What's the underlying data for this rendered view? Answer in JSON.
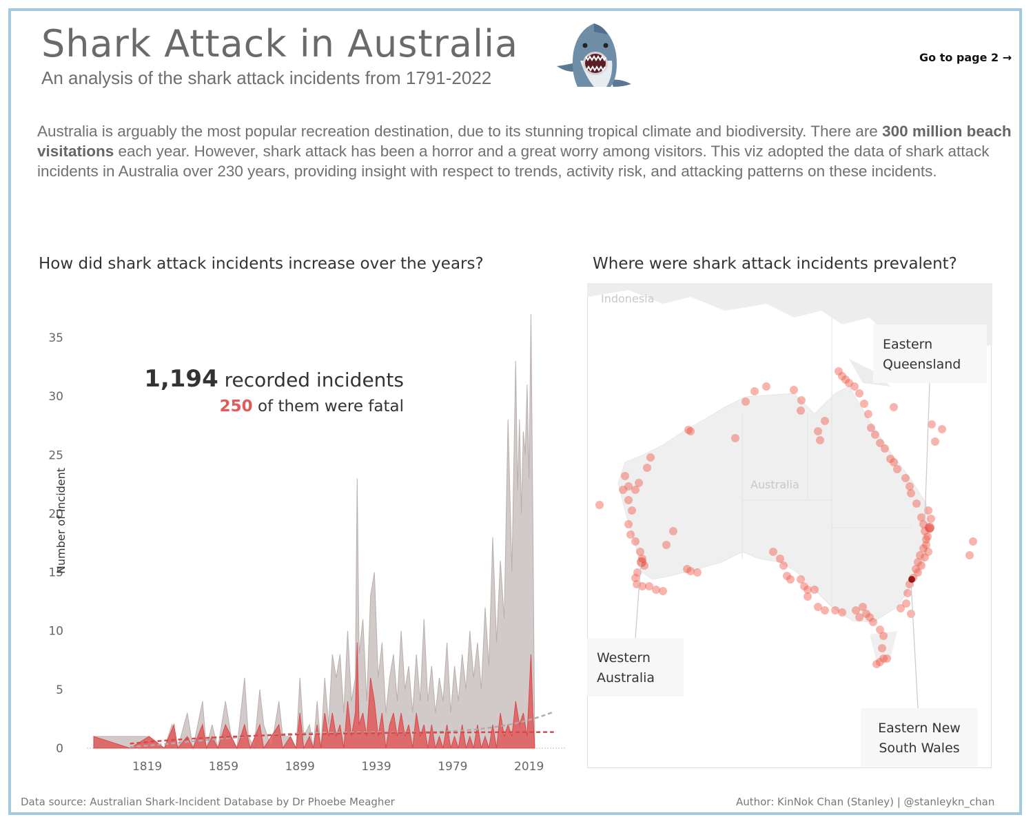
{
  "header": {
    "title": "Shark Attack in Australia",
    "subtitle": "An analysis of the shark attack incidents from 1791-2022",
    "nav_link": "Go to page 2 →"
  },
  "intro": {
    "part1": "Australia is arguably the most popular recreation destination, due to its stunning tropical climate and biodiversity. There are ",
    "bold": "300 million beach visitations",
    "part2": " each year. However, shark attack has been a horror and a great worry among visitors. This viz adopted the data of shark attack incidents in Australia over 230 years, providing insight with respect to trends, activity risk, and attacking patterns on these incidents."
  },
  "chart_section": {
    "question": "How did shark attack incidents increase over the years?",
    "total_number": "1,194",
    "total_text": " recorded incidents",
    "fatal_number": "250",
    "fatal_text": " of them were fatal",
    "total_color": "#c9c1bf",
    "fatal_color": "#e05a5a"
  },
  "map_section": {
    "question": "Where were shark attack incidents prevalent?",
    "base_labels": [
      "Indonesia",
      "Australia"
    ],
    "callouts": [
      {
        "line1": "Eastern",
        "line2": "Queensland"
      },
      {
        "line1": "Western",
        "line2": "Australia"
      },
      {
        "line1": "Eastern New",
        "line2": "South Wales"
      }
    ],
    "point_color": "#f25c4a",
    "hotspot_color": "#8b0000"
  },
  "footer": {
    "source": "Data source: Australian Shark-Incident Database by Dr Phoebe Meagher",
    "author": "Author: KinNok Chan (Stanley) | @stanleykn_chan"
  },
  "chart_data": {
    "type": "area",
    "title": "How did shark attack incidents increase over the years?",
    "xlabel": "",
    "ylabel": "Number of incident",
    "xlim": [
      1791,
      2022
    ],
    "ylim": [
      0,
      37
    ],
    "x_ticks": [
      1819,
      1859,
      1899,
      1939,
      1979,
      2019
    ],
    "y_ticks": [
      0,
      5,
      10,
      15,
      20,
      25,
      30,
      35
    ],
    "grid": false,
    "series": [
      {
        "name": "recorded incidents",
        "trendline": true,
        "points": [
          [
            1791,
            1
          ],
          [
            1810,
            1
          ],
          [
            1820,
            1
          ],
          [
            1828,
            0
          ],
          [
            1832,
            2
          ],
          [
            1835,
            0
          ],
          [
            1840,
            3
          ],
          [
            1843,
            0
          ],
          [
            1848,
            4
          ],
          [
            1850,
            0
          ],
          [
            1853,
            2
          ],
          [
            1856,
            0
          ],
          [
            1860,
            4
          ],
          [
            1863,
            1
          ],
          [
            1866,
            0
          ],
          [
            1870,
            6
          ],
          [
            1872,
            1
          ],
          [
            1875,
            0
          ],
          [
            1878,
            5
          ],
          [
            1880,
            2
          ],
          [
            1884,
            0
          ],
          [
            1888,
            4
          ],
          [
            1890,
            1
          ],
          [
            1893,
            1
          ],
          [
            1897,
            0
          ],
          [
            1899,
            6
          ],
          [
            1901,
            1
          ],
          [
            1904,
            2
          ],
          [
            1906,
            0
          ],
          [
            1908,
            4
          ],
          [
            1910,
            0
          ],
          [
            1912,
            6
          ],
          [
            1914,
            2
          ],
          [
            1916,
            8
          ],
          [
            1918,
            6
          ],
          [
            1920,
            8
          ],
          [
            1922,
            3
          ],
          [
            1924,
            10
          ],
          [
            1926,
            4
          ],
          [
            1928,
            6
          ],
          [
            1929,
            23
          ],
          [
            1930,
            8
          ],
          [
            1932,
            11
          ],
          [
            1934,
            4
          ],
          [
            1936,
            13
          ],
          [
            1938,
            15
          ],
          [
            1940,
            6
          ],
          [
            1942,
            9
          ],
          [
            1944,
            3
          ],
          [
            1946,
            6
          ],
          [
            1948,
            8
          ],
          [
            1950,
            4
          ],
          [
            1952,
            10
          ],
          [
            1954,
            5
          ],
          [
            1956,
            7
          ],
          [
            1958,
            3
          ],
          [
            1960,
            8
          ],
          [
            1962,
            4
          ],
          [
            1964,
            11
          ],
          [
            1966,
            4
          ],
          [
            1968,
            7
          ],
          [
            1970,
            3
          ],
          [
            1972,
            6
          ],
          [
            1974,
            4
          ],
          [
            1976,
            9
          ],
          [
            1978,
            3
          ],
          [
            1980,
            7
          ],
          [
            1982,
            4
          ],
          [
            1984,
            8
          ],
          [
            1986,
            5
          ],
          [
            1988,
            10
          ],
          [
            1990,
            6
          ],
          [
            1992,
            9
          ],
          [
            1994,
            5
          ],
          [
            1996,
            12
          ],
          [
            1998,
            7
          ],
          [
            2000,
            18
          ],
          [
            2002,
            9
          ],
          [
            2004,
            16
          ],
          [
            2006,
            11
          ],
          [
            2008,
            28
          ],
          [
            2010,
            15
          ],
          [
            2012,
            33
          ],
          [
            2013,
            22
          ],
          [
            2014,
            28
          ],
          [
            2015,
            20
          ],
          [
            2016,
            27
          ],
          [
            2017,
            25
          ],
          [
            2018,
            31
          ],
          [
            2019,
            23
          ],
          [
            2020,
            37
          ],
          [
            2021,
            20
          ],
          [
            2022,
            0
          ]
        ]
      },
      {
        "name": "fatal",
        "trendline": true,
        "points": [
          [
            1791,
            1
          ],
          [
            1810,
            0
          ],
          [
            1820,
            1
          ],
          [
            1828,
            0
          ],
          [
            1833,
            2
          ],
          [
            1835,
            0
          ],
          [
            1840,
            1
          ],
          [
            1843,
            0
          ],
          [
            1848,
            2
          ],
          [
            1850,
            0
          ],
          [
            1853,
            1
          ],
          [
            1856,
            0
          ],
          [
            1860,
            2
          ],
          [
            1863,
            1
          ],
          [
            1866,
            0
          ],
          [
            1870,
            2
          ],
          [
            1873,
            0
          ],
          [
            1878,
            2
          ],
          [
            1880,
            0
          ],
          [
            1884,
            1
          ],
          [
            1888,
            2
          ],
          [
            1890,
            0
          ],
          [
            1894,
            1
          ],
          [
            1897,
            0
          ],
          [
            1899,
            3
          ],
          [
            1901,
            0
          ],
          [
            1904,
            1
          ],
          [
            1906,
            0
          ],
          [
            1908,
            2
          ],
          [
            1910,
            0
          ],
          [
            1912,
            3
          ],
          [
            1914,
            1
          ],
          [
            1916,
            3
          ],
          [
            1918,
            1
          ],
          [
            1920,
            2
          ],
          [
            1922,
            0
          ],
          [
            1924,
            4
          ],
          [
            1926,
            1
          ],
          [
            1928,
            3
          ],
          [
            1929,
            9
          ],
          [
            1930,
            2
          ],
          [
            1932,
            3
          ],
          [
            1934,
            1
          ],
          [
            1936,
            6
          ],
          [
            1938,
            4
          ],
          [
            1940,
            1
          ],
          [
            1942,
            3
          ],
          [
            1944,
            0
          ],
          [
            1946,
            2
          ],
          [
            1948,
            3
          ],
          [
            1950,
            1
          ],
          [
            1952,
            3
          ],
          [
            1954,
            1
          ],
          [
            1956,
            2
          ],
          [
            1958,
            0
          ],
          [
            1960,
            3
          ],
          [
            1962,
            1
          ],
          [
            1964,
            2
          ],
          [
            1966,
            0
          ],
          [
            1968,
            2
          ],
          [
            1970,
            0
          ],
          [
            1972,
            1
          ],
          [
            1974,
            0
          ],
          [
            1976,
            2
          ],
          [
            1978,
            0
          ],
          [
            1980,
            1
          ],
          [
            1982,
            0
          ],
          [
            1984,
            2
          ],
          [
            1986,
            0
          ],
          [
            1988,
            1
          ],
          [
            1990,
            0
          ],
          [
            1992,
            2
          ],
          [
            1994,
            0
          ],
          [
            1996,
            1
          ],
          [
            1998,
            0
          ],
          [
            2000,
            2
          ],
          [
            2002,
            0
          ],
          [
            2004,
            3
          ],
          [
            2006,
            1
          ],
          [
            2008,
            2
          ],
          [
            2010,
            1
          ],
          [
            2012,
            4
          ],
          [
            2014,
            2
          ],
          [
            2016,
            3
          ],
          [
            2018,
            1
          ],
          [
            2020,
            8
          ],
          [
            2021,
            3
          ],
          [
            2022,
            0
          ]
        ]
      }
    ]
  }
}
